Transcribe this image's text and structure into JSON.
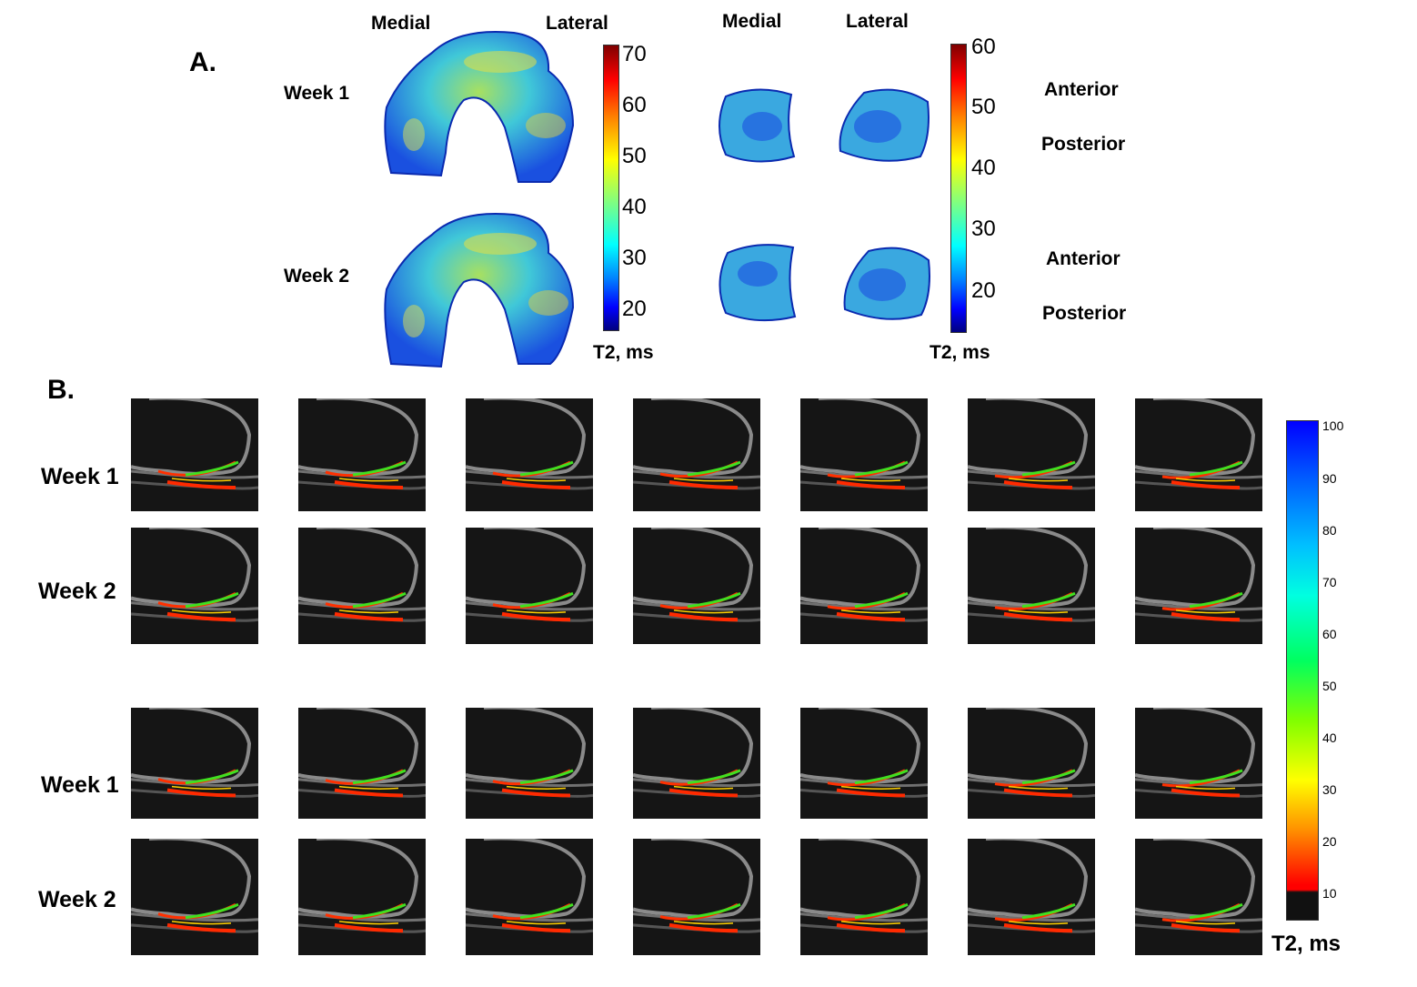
{
  "panelA": {
    "label": "A.",
    "femoral": {
      "col_medial": "Medial",
      "col_lateral": "Lateral",
      "row1": "Week 1",
      "row2": "Week 2",
      "colorbar": {
        "ticks": [
          "70",
          "60",
          "50",
          "40",
          "30",
          "20"
        ],
        "label": "T2, ms",
        "range": [
          15,
          72
        ]
      }
    },
    "tibial": {
      "col_medial": "Medial",
      "col_lateral": "Lateral",
      "side_labels": [
        "Anterior",
        "Posterior",
        "Anterior",
        "Posterior"
      ],
      "colorbar": {
        "ticks": [
          "60",
          "50",
          "40",
          "30",
          "20"
        ],
        "label": "T2, ms",
        "range": [
          13,
          61
        ]
      }
    }
  },
  "panelB": {
    "label": "B.",
    "rows": [
      "Week 1",
      "Week 2",
      "Week 1",
      "Week 2"
    ],
    "columns_per_row": 7,
    "colorbar": {
      "ticks": [
        "100",
        "90",
        "80",
        "70",
        "60",
        "50",
        "40",
        "30",
        "20",
        "10"
      ],
      "label": "T2, ms"
    }
  },
  "colors": {
    "jet_dark_red": "#7f0000",
    "jet_blue": "#0000ff",
    "black_band": "#111111"
  }
}
